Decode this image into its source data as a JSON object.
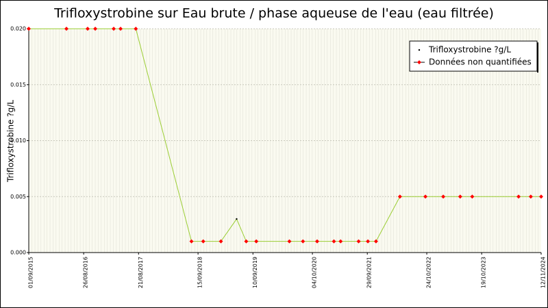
{
  "chart_data": {
    "type": "line",
    "title": "Trifloxystrobine sur Eau brute / phase aqueuse de l'eau (eau filtrée)",
    "y_label": "Trifloxystrobine ?g/L",
    "x": [
      "01/09/2015",
      "05/05/2016",
      "21/09/2016",
      "10/11/2016",
      "11/03/2017",
      "25/04/2017",
      "03/08/2017",
      "03/08/2018",
      "19/10/2018",
      "12/02/2019",
      "26/05/2019",
      "28/07/2019",
      "02/10/2019",
      "06/05/2020",
      "03/08/2020",
      "04/11/2020",
      "22/02/2021",
      "07/04/2021",
      "03/08/2021",
      "03/10/2021",
      "25/11/2021",
      "01/05/2022",
      "15/10/2022",
      "09/02/2023",
      "31/05/2023",
      "18/08/2023",
      "17/06/2024",
      "05/09/2024",
      "12/11/2024"
    ],
    "series": [
      {
        "name": "Trifloxystrobine ?g/L",
        "color": "#000000",
        "line_color": "#9acd32",
        "values": [
          0.02,
          0.02,
          0.02,
          0.02,
          0.02,
          0.02,
          0.02,
          0.001,
          0.001,
          0.001,
          0.003,
          0.001,
          0.001,
          0.001,
          0.001,
          0.001,
          0.001,
          0.001,
          0.001,
          0.001,
          0.001,
          0.005,
          0.005,
          0.005,
          0.005,
          0.005,
          0.005,
          0.005,
          0.005
        ]
      },
      {
        "name": "Données non quantifiées",
        "color": "#ff0000",
        "values": [
          0.02,
          0.02,
          0.02,
          0.02,
          0.02,
          0.02,
          0.02,
          0.001,
          0.001,
          0.001,
          null,
          0.001,
          0.001,
          0.001,
          0.001,
          0.001,
          0.001,
          0.001,
          0.001,
          0.001,
          0.001,
          0.005,
          0.005,
          0.005,
          0.005,
          0.005,
          0.005,
          0.005,
          0.005
        ]
      }
    ],
    "xlim": [
      "01/09/2015",
      "12/11/2024"
    ],
    "xticks": [
      "01/09/2015",
      "26/08/2016",
      "21/08/2017",
      "15/09/2018",
      "10/09/2019",
      "04/10/2020",
      "29/09/2021",
      "24/10/2022",
      "19/10/2023",
      "12/11/2024"
    ],
    "ylim": [
      0,
      0.02
    ],
    "yticks": [
      {
        "value": 0,
        "label": "0.000"
      },
      {
        "value": 0.005,
        "label": "0.005"
      },
      {
        "value": 0.01,
        "label": "0.010"
      },
      {
        "value": 0.015,
        "label": "0.015"
      },
      {
        "value": 0.02,
        "label": "0.020"
      }
    ],
    "grid": true,
    "legend_position": "upper right"
  }
}
